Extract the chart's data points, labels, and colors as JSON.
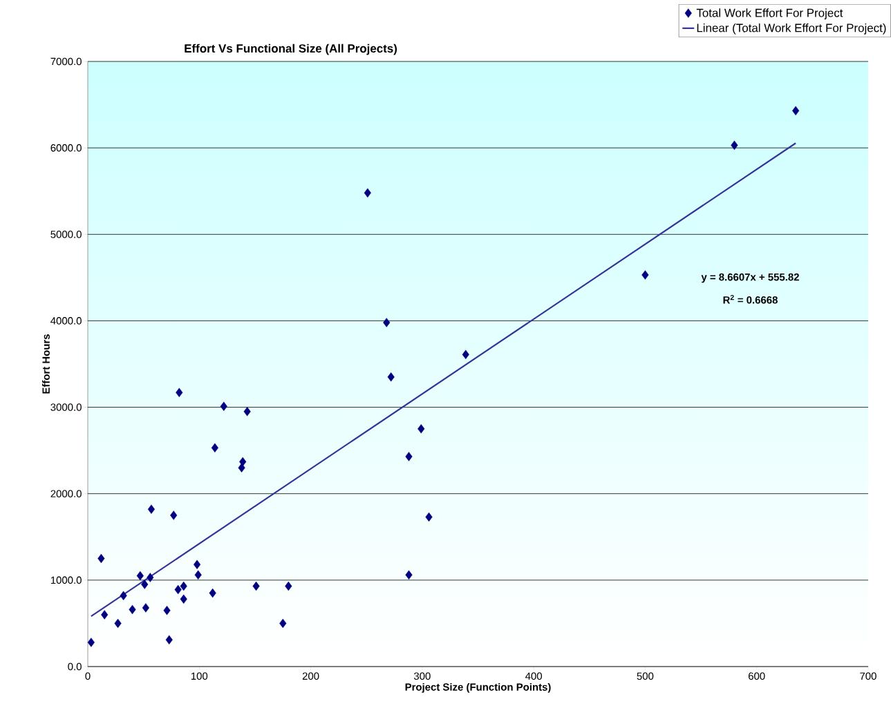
{
  "chart_data": {
    "type": "scatter",
    "title": "Effort Vs Functional Size (All Projects)",
    "xlabel": "Project Size (Function Points)",
    "ylabel": "Effort Hours",
    "xlim": [
      0,
      700
    ],
    "xticks": [
      0,
      100,
      200,
      300,
      400,
      500,
      600,
      700
    ],
    "ylim": [
      0,
      7000
    ],
    "yticks": [
      {
        "value": 0,
        "label": "0.0"
      },
      {
        "value": 1000,
        "label": "1000.0"
      },
      {
        "value": 2000,
        "label": "2000.0"
      },
      {
        "value": 3000,
        "label": "3000.0"
      },
      {
        "value": 4000,
        "label": "4000.0"
      },
      {
        "value": 5000,
        "label": "5000.0"
      },
      {
        "value": 6000,
        "label": "6000.0"
      },
      {
        "value": 7000,
        "label": "7000.0"
      }
    ],
    "grid": "y",
    "legend": "top right",
    "series": [
      {
        "name": "Total Work Effort For Project",
        "color": "#000080",
        "marker": "diamond",
        "x": [
          3,
          12,
          15,
          27,
          32,
          40,
          47,
          51,
          52,
          56,
          57,
          71,
          73,
          77,
          82,
          81,
          86,
          86,
          98,
          99,
          112,
          114,
          122,
          138,
          139,
          143,
          151,
          175,
          180,
          251,
          268,
          272,
          288,
          288,
          299,
          306,
          339,
          500,
          580,
          635
        ],
        "values": [
          280,
          1250,
          600,
          500,
          820,
          660,
          1050,
          950,
          680,
          1030,
          1820,
          650,
          310,
          1750,
          3170,
          890,
          930,
          780,
          1180,
          1060,
          850,
          2530,
          3010,
          2300,
          2370,
          2950,
          930,
          500,
          930,
          5480,
          3980,
          3350,
          2430,
          1060,
          2750,
          1730,
          3610,
          4530,
          6030,
          6430
        ]
      },
      {
        "name": "Linear (Total Work Effort For Project)",
        "type": "line",
        "marker": "none",
        "color": "#333399",
        "x": [
          3,
          635
        ],
        "values": [
          582,
          6055
        ]
      }
    ],
    "annotations": [
      "y = 8.6607x + 555.82",
      "R$^{2}$ = 0.6668"
    ]
  }
}
